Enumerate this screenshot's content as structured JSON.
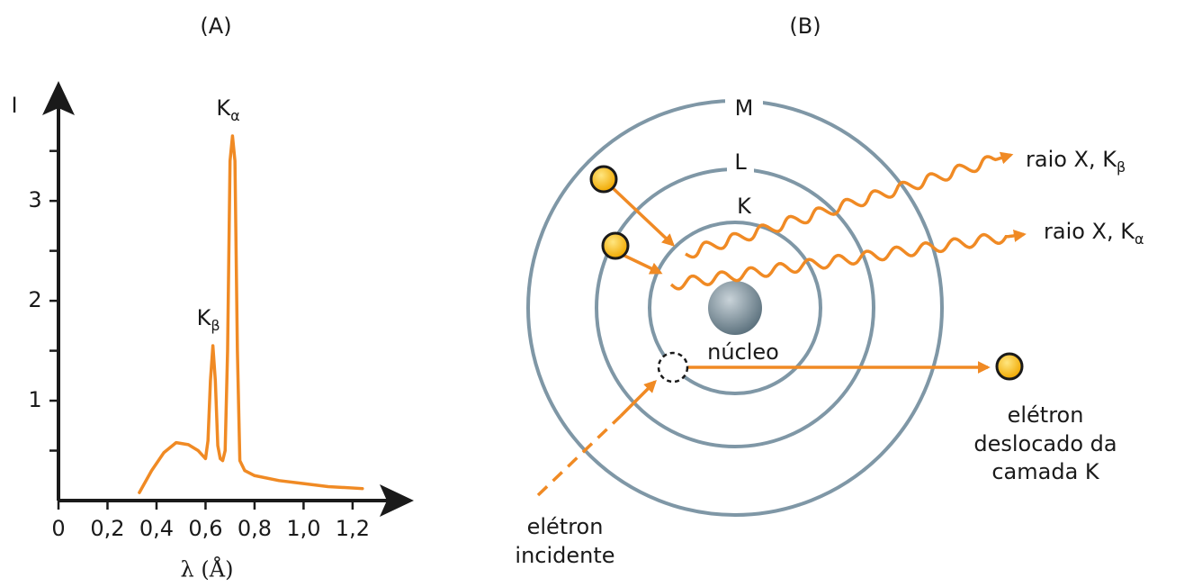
{
  "chart_data": {
    "type": "line",
    "title": "(A)",
    "x_label": "λ (Å)",
    "y_label": "I",
    "x": [
      0.33,
      0.38,
      0.43,
      0.48,
      0.53,
      0.57,
      0.6,
      0.61,
      0.62,
      0.63,
      0.64,
      0.65,
      0.66,
      0.67,
      0.68,
      0.69,
      0.7,
      0.71,
      0.72,
      0.73,
      0.74,
      0.76,
      0.8,
      0.9,
      1.0,
      1.1,
      1.24
    ],
    "values": [
      0.08,
      0.3,
      0.48,
      0.58,
      0.56,
      0.5,
      0.42,
      0.6,
      1.2,
      1.55,
      1.2,
      0.55,
      0.42,
      0.4,
      0.5,
      1.5,
      3.4,
      3.65,
      3.4,
      1.5,
      0.4,
      0.3,
      0.25,
      0.2,
      0.17,
      0.14,
      0.12
    ],
    "color": "#f08a24",
    "xlim": [
      0,
      1.45
    ],
    "ylim": [
      0,
      4.2
    ],
    "xticks": [
      0,
      {
        "value": 0.2,
        "label": "0,2"
      },
      {
        "value": 0.4,
        "label": "0,4"
      },
      {
        "value": 0.6,
        "label": "0,6"
      },
      {
        "value": 0.8,
        "label": "0,8"
      },
      {
        "value": 1.0,
        "label": "1,0"
      },
      {
        "value": 1.2,
        "label": "1,2"
      }
    ],
    "yticks": [
      1,
      2,
      3
    ],
    "annotations": [
      {
        "text": "K",
        "sub": "β"
      },
      {
        "text": "K",
        "sub": "α"
      }
    ]
  },
  "diagram": {
    "title": "(B)",
    "shells": [
      "K",
      "L",
      "M"
    ],
    "nucleus": "núcleo",
    "xrays": [
      {
        "text": "raio X, K",
        "sub": "β"
      },
      {
        "text": "raio X, K",
        "sub": "α"
      }
    ],
    "displaced_electron": [
      "elétron",
      "deslocado da",
      "camada K"
    ],
    "incident_electron": [
      "elétron",
      "incidente"
    ]
  }
}
